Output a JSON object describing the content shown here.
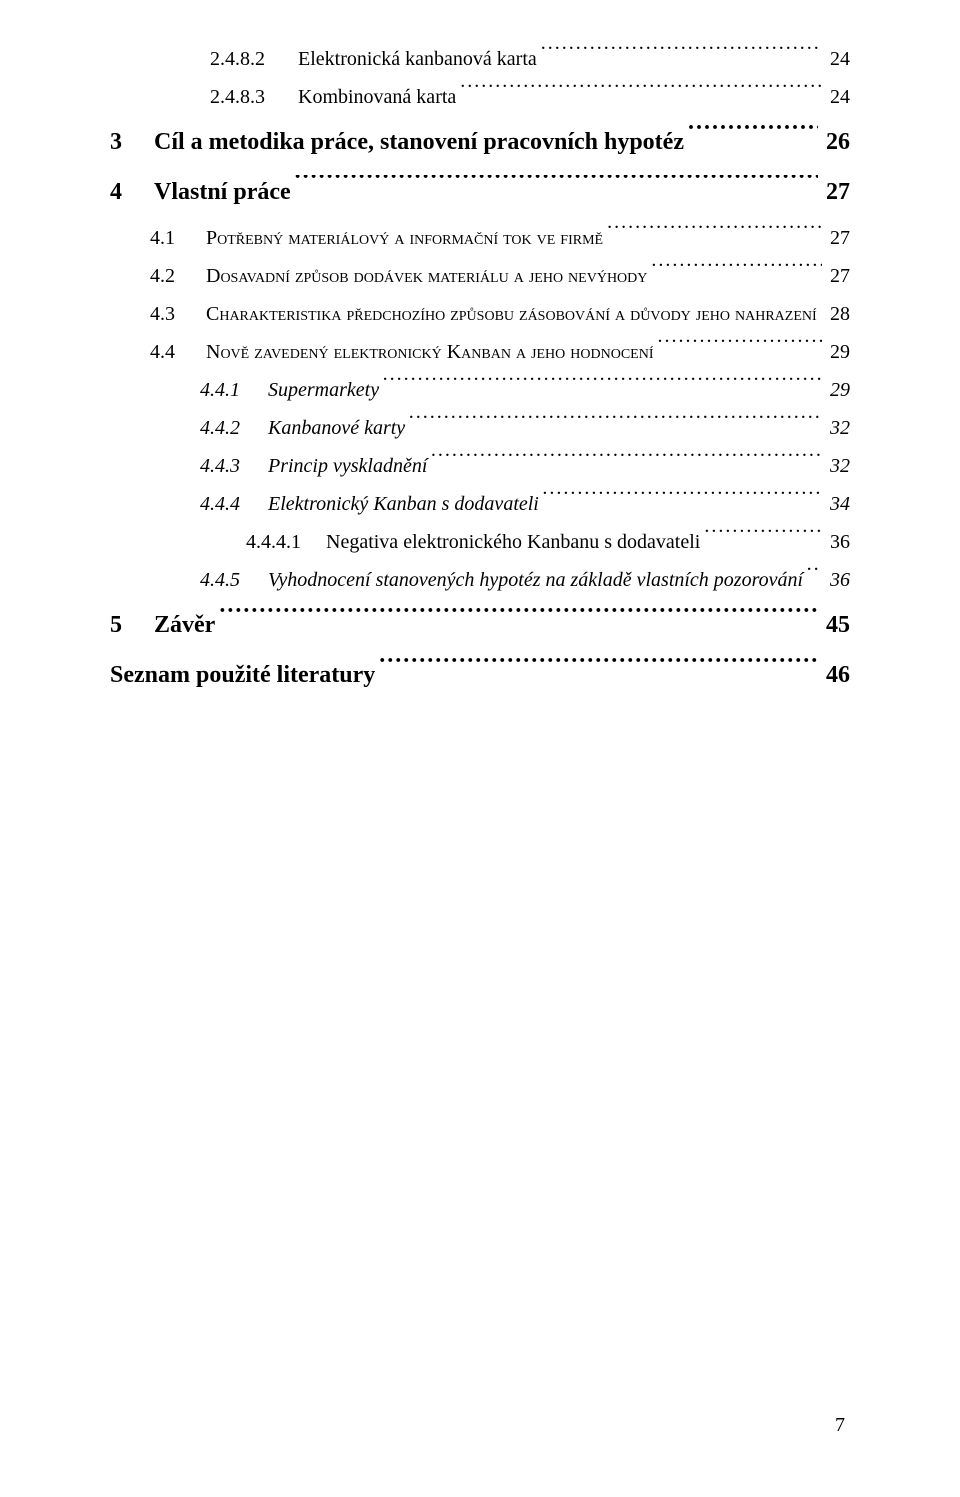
{
  "entries": [
    {
      "level": "deep",
      "num": "2.4.8.2",
      "label": "Elektronická kanbanová karta",
      "page": "24"
    },
    {
      "level": "deep",
      "num": "2.4.8.3",
      "label": "Kombinovaná karta",
      "page": "24"
    },
    {
      "level": "chapter",
      "num": "3",
      "label": "Cíl a metodika práce, stanovení pracovních hypotéz",
      "page": "26"
    },
    {
      "level": "chapter",
      "num": "4",
      "label": "Vlastní práce",
      "page": "27"
    },
    {
      "level": "sec",
      "num": "4.1",
      "label": "Potřebný materiálový a informační tok ve firmě",
      "page": "27",
      "smallcaps": true
    },
    {
      "level": "sec",
      "num": "4.2",
      "label": "Dosavadní způsob dodávek materiálu a jeho nevýhody",
      "page": "27",
      "smallcaps": true
    },
    {
      "level": "sec",
      "num": "4.3",
      "label": "Charakteristika předchozího způsobu zásobování a důvody jeho nahrazení",
      "page": "28",
      "smallcaps": true
    },
    {
      "level": "sec",
      "num": "4.4",
      "label": "Nově zavedený elektronický Kanban a jeho hodnocení",
      "page": "29",
      "smallcaps": true
    },
    {
      "level": "sub",
      "num": "4.4.1",
      "label": "Supermarkety",
      "page": "29"
    },
    {
      "level": "sub",
      "num": "4.4.2",
      "label": "Kanbanové karty",
      "page": "32"
    },
    {
      "level": "sub",
      "num": "4.4.3",
      "label": "Princip vyskladnění",
      "page": "32"
    },
    {
      "level": "sub",
      "num": "4.4.4",
      "label": "Elektronický Kanban s dodavateli",
      "page": "34"
    },
    {
      "level": "subsub",
      "num": "4.4.4.1",
      "label": "Negativa elektronického Kanbanu s dodavateli",
      "page": "36"
    },
    {
      "level": "sub",
      "num": "4.4.5",
      "label": "Vyhodnocení stanovených hypotéz na základě vlastních pozorování",
      "page": "36"
    },
    {
      "level": "chapter",
      "num": "5",
      "label": "Závěr",
      "page": "45"
    },
    {
      "level": "litsec",
      "num": "",
      "label": "Seznam použité literatury",
      "page": "46"
    }
  ],
  "page_number": "7",
  "colors": {
    "text": "#000000",
    "background": "#ffffff"
  },
  "fonts": {
    "family": "Times New Roman",
    "base_size_pt": 15,
    "chapter_size_pt": 18
  }
}
